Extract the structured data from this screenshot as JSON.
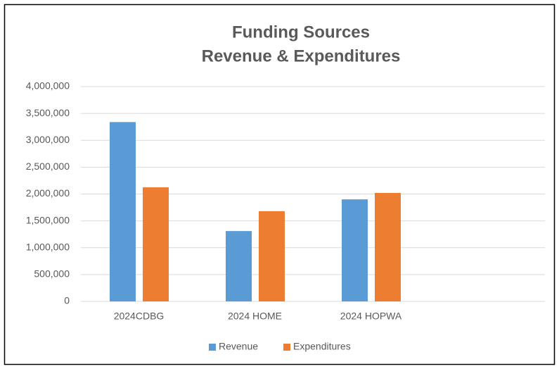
{
  "chart_data": {
    "type": "bar",
    "title": [
      "Funding Sources",
      "Revenue & Expenditures"
    ],
    "categories": [
      "2024CDBG",
      "2024 HOME",
      "2024 HOPWA",
      null
    ],
    "series": [
      {
        "name": "Revenue",
        "color": "#5b9bd5",
        "values": [
          3340000,
          1310000,
          1900000,
          null
        ]
      },
      {
        "name": "Expenditures",
        "color": "#ed7d31",
        "values": [
          2125000,
          1680000,
          2020000,
          null
        ]
      }
    ],
    "ylim": [
      0,
      4000000
    ],
    "yticks": [
      0,
      {
        "value": 500000,
        "label": "500,000"
      },
      {
        "value": 1000000,
        "label": "1,000,000"
      },
      {
        "value": 1500000,
        "label": "1,500,000"
      },
      {
        "value": 2000000,
        "label": "2,000,000"
      },
      {
        "value": 2500000,
        "label": "2,500,000"
      },
      {
        "value": 3000000,
        "label": "3,000,000"
      },
      {
        "value": 3500000,
        "label": "3,500,000"
      },
      {
        "value": 4000000,
        "label": "4,000,000"
      }
    ],
    "grid": true,
    "legend": "bottom"
  }
}
